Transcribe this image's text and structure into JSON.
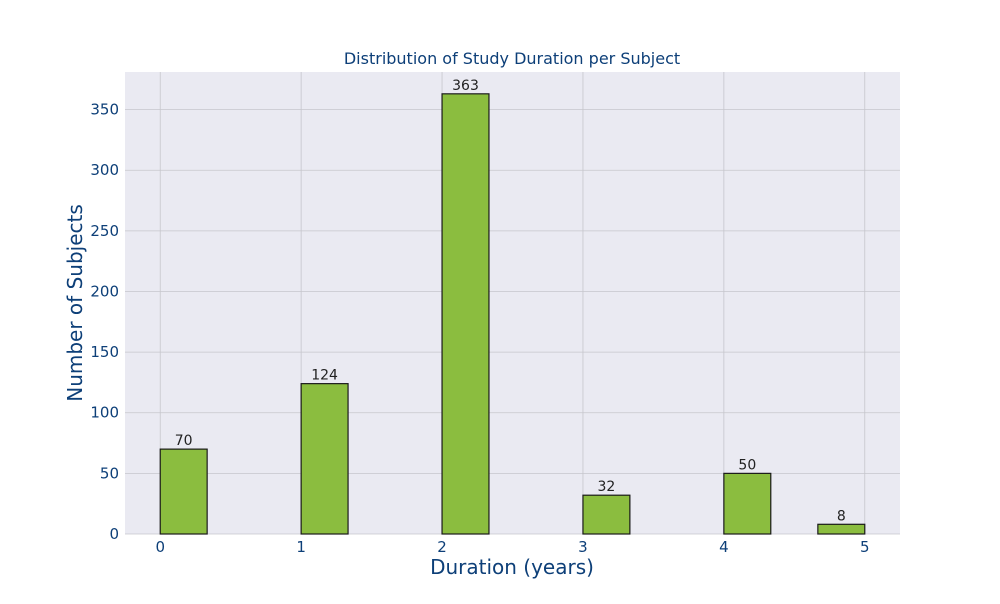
{
  "chart_data": {
    "type": "bar",
    "title": "Distribution of Study Duration per Subject",
    "xlabel": "Duration (years)",
    "ylabel": "Number of Subjects",
    "xlim": [
      -0.25,
      5.25
    ],
    "ylim": [
      0,
      381
    ],
    "xticks": [
      0,
      1,
      2,
      3,
      4,
      5
    ],
    "yticks": [
      0,
      50,
      100,
      150,
      200,
      250,
      300,
      350
    ],
    "bin_width": 0.333,
    "bars": [
      {
        "x": 0.0,
        "value": 70
      },
      {
        "x": 1.0,
        "value": 124
      },
      {
        "x": 2.0,
        "value": 363
      },
      {
        "x": 3.0,
        "value": 32
      },
      {
        "x": 4.0,
        "value": 50
      },
      {
        "x": 4.667,
        "value": 8
      }
    ],
    "grid": true,
    "colors": {
      "bar_fill": "#8bbd3f",
      "bar_edge": "#1a1a1a",
      "plot_background": "#eaeaf2",
      "grid": "#c6c6cc",
      "title_text": "#0d3f78",
      "axis_label_text": "#0d3f78",
      "tick_text": "#0d3f78",
      "data_label_text": "#222222"
    }
  }
}
